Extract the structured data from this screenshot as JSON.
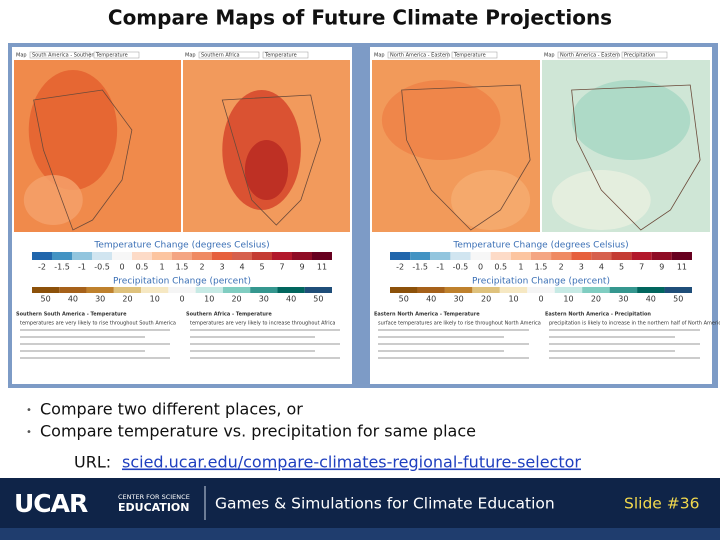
{
  "title": "Compare Maps of Future Climate Projections",
  "screenshot": {
    "panels": [
      {
        "maps": [
          {
            "label": "Map",
            "region": "South America - Southern",
            "variable": "Temperature"
          },
          {
            "label": "Map",
            "region": "Southern Africa",
            "variable": "Temperature"
          }
        ],
        "legend": {
          "temperature_title": "Temperature Change (degrees Celsius)",
          "temperature_ticks": [
            "-2",
            "-1.5",
            "-1",
            "-0.5",
            "0",
            "0.5",
            "1",
            "1.5",
            "2",
            "3",
            "4",
            "5",
            "7",
            "9",
            "11"
          ],
          "precipitation_title": "Precipitation Change (percent)",
          "precipitation_ticks": [
            "50",
            "40",
            "30",
            "20",
            "10",
            "0",
            "10",
            "20",
            "30",
            "40",
            "50"
          ]
        },
        "notes": [
          {
            "heading": "Southern South America - Temperature",
            "text": "temperatures are very likely to rise throughout South America"
          },
          {
            "heading": "Southern Africa - Temperature",
            "text": "temperatures are very likely to increase throughout Africa"
          }
        ]
      },
      {
        "maps": [
          {
            "label": "Map",
            "region": "North America - Eastern",
            "variable": "Temperature"
          },
          {
            "label": "Map",
            "region": "North America - Eastern",
            "variable": "Precipitation"
          }
        ],
        "legend": {
          "temperature_title": "Temperature Change (degrees Celsius)",
          "temperature_ticks": [
            "-2",
            "-1.5",
            "-1",
            "-0.5",
            "0",
            "0.5",
            "1",
            "1.5",
            "2",
            "3",
            "4",
            "5",
            "7",
            "9",
            "11"
          ],
          "precipitation_title": "Precipitation Change (percent)",
          "precipitation_ticks": [
            "50",
            "40",
            "30",
            "20",
            "10",
            "0",
            "10",
            "20",
            "30",
            "40",
            "50"
          ]
        },
        "notes": [
          {
            "heading": "Eastern North America - Temperature",
            "text": "surface temperatures are likely to rise throughout North America"
          },
          {
            "heading": "Eastern North America - Precipitation",
            "text": "precipitation is likely to increase in the northern half of North America"
          }
        ]
      }
    ]
  },
  "bullets": [
    "Compare two different places, or",
    "Compare temperature vs. precipitation for same place"
  ],
  "url": {
    "label": "URL:",
    "link": "scied.ucar.edu/compare-climates-regional-future-selector"
  },
  "footer": {
    "logo": "UCAR",
    "logo_sub": [
      "CENTER FOR SCIENCE",
      "EDUCATION"
    ],
    "text": "Games & Simulations for Climate Education",
    "slide": "Slide #36"
  }
}
